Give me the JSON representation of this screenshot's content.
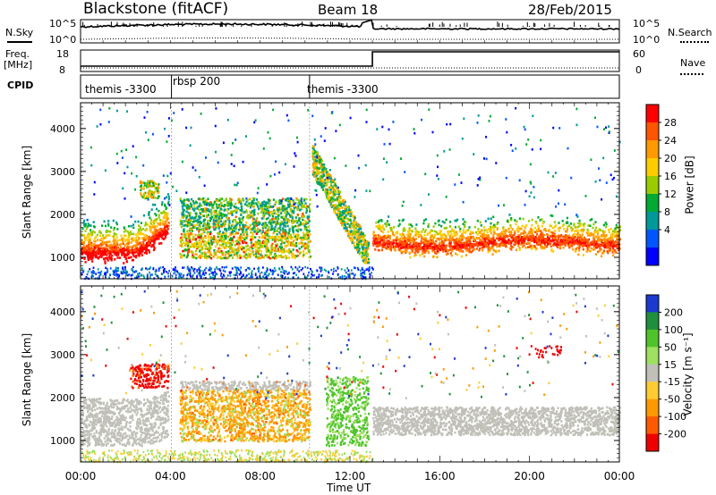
{
  "header": {
    "station": "Blackstone (fitACF)",
    "beam": "Beam 18",
    "date": "28/Feb/2015"
  },
  "summary": {
    "nsky_label": "N.Sky",
    "nsky_ticks": [
      "10^5",
      "10^0"
    ],
    "nsearch_label": "N.Search",
    "nsearch_ticks": [
      "10^5",
      "10^0"
    ],
    "freq_label_top": "Freq.",
    "freq_label_bottom": "[MHz]",
    "freq_ticks": [
      "18",
      "8"
    ],
    "nave_label": "Nave",
    "nave_ticks": [
      "60",
      "0"
    ],
    "cpid_label": "CPID",
    "cpid_segments": [
      "themis -3300",
      "rbsp 200",
      "themis -3300"
    ]
  },
  "power_colorbar": {
    "label": "Power [dB]",
    "ticks": [
      "28",
      "24",
      "20",
      "16",
      "12",
      "8",
      "4"
    ],
    "colors": [
      "#ff0000",
      "#ff5500",
      "#ff9900",
      "#ffcc00",
      "#99cc00",
      "#00aa33",
      "#009999",
      "#0055ff",
      "#0000ff"
    ]
  },
  "velocity_colorbar": {
    "label": "Velocity [m s⁻¹]",
    "ticks": [
      "200",
      "100",
      "50",
      "15",
      "-15",
      "-50",
      "-100",
      "-200"
    ],
    "colors": [
      "#1a3ad0",
      "#1f8f3c",
      "#4fc42a",
      "#9ee060",
      "#c0c0b8",
      "#ffcc33",
      "#ff9900",
      "#ff5a00",
      "#ee0000"
    ]
  },
  "chart_data": [
    {
      "type": "heatmap",
      "name": "power",
      "ylabel": "Slant Range [km]",
      "y_ticks": [
        "1000",
        "2000",
        "3000",
        "4000"
      ],
      "ylim": [
        500,
        4600
      ],
      "xlim": [
        0,
        24
      ],
      "x_ticks": [
        "00:00",
        "04:00",
        "08:00",
        "12:00",
        "16:00",
        "20:00",
        "00:00"
      ],
      "bands": [
        {
          "x_start": 0.0,
          "x_end": 4.0,
          "range_km": [
            900,
            2000
          ],
          "peak_db": 28
        },
        {
          "x_start": 4.3,
          "x_end": 10.2,
          "range_km": [
            1000,
            2400
          ],
          "peak_db": 24
        },
        {
          "x_start": 10.3,
          "x_end": 12.8,
          "range_km": [
            900,
            3600
          ],
          "peak_db": 28
        },
        {
          "x_start": 13.0,
          "x_end": 24.0,
          "range_km": [
            1100,
            2000
          ],
          "peak_db": 28
        }
      ]
    },
    {
      "type": "heatmap",
      "name": "velocity",
      "ylabel": "Slant Range [km]",
      "xlabel": "Time UT",
      "y_ticks": [
        "1000",
        "2000",
        "3000",
        "4000"
      ],
      "ylim": [
        500,
        4600
      ],
      "xlim": [
        0,
        24
      ],
      "x_ticks": [
        "00:00",
        "04:00",
        "08:00",
        "12:00",
        "16:00",
        "20:00",
        "00:00"
      ],
      "bands": [
        {
          "x_start": 0.0,
          "x_end": 4.0,
          "range_km": [
            900,
            2000
          ],
          "velocity": "ground scatter"
        },
        {
          "x_start": 2.3,
          "x_end": 4.0,
          "range_km": [
            2300,
            2800
          ],
          "velocity": -200
        },
        {
          "x_start": 4.5,
          "x_end": 10.3,
          "range_km": [
            1000,
            2400
          ],
          "velocity": -50
        },
        {
          "x_start": 11.0,
          "x_end": 12.8,
          "range_km": [
            900,
            2500
          ],
          "velocity": 50
        },
        {
          "x_start": 13.0,
          "x_end": 24.0,
          "range_km": [
            1100,
            1800
          ],
          "velocity": "ground scatter"
        },
        {
          "x_start": 20.0,
          "x_end": 21.5,
          "range_km": [
            2900,
            3300
          ],
          "velocity": -200
        }
      ]
    }
  ],
  "x_axis": {
    "label": "Time UT"
  }
}
